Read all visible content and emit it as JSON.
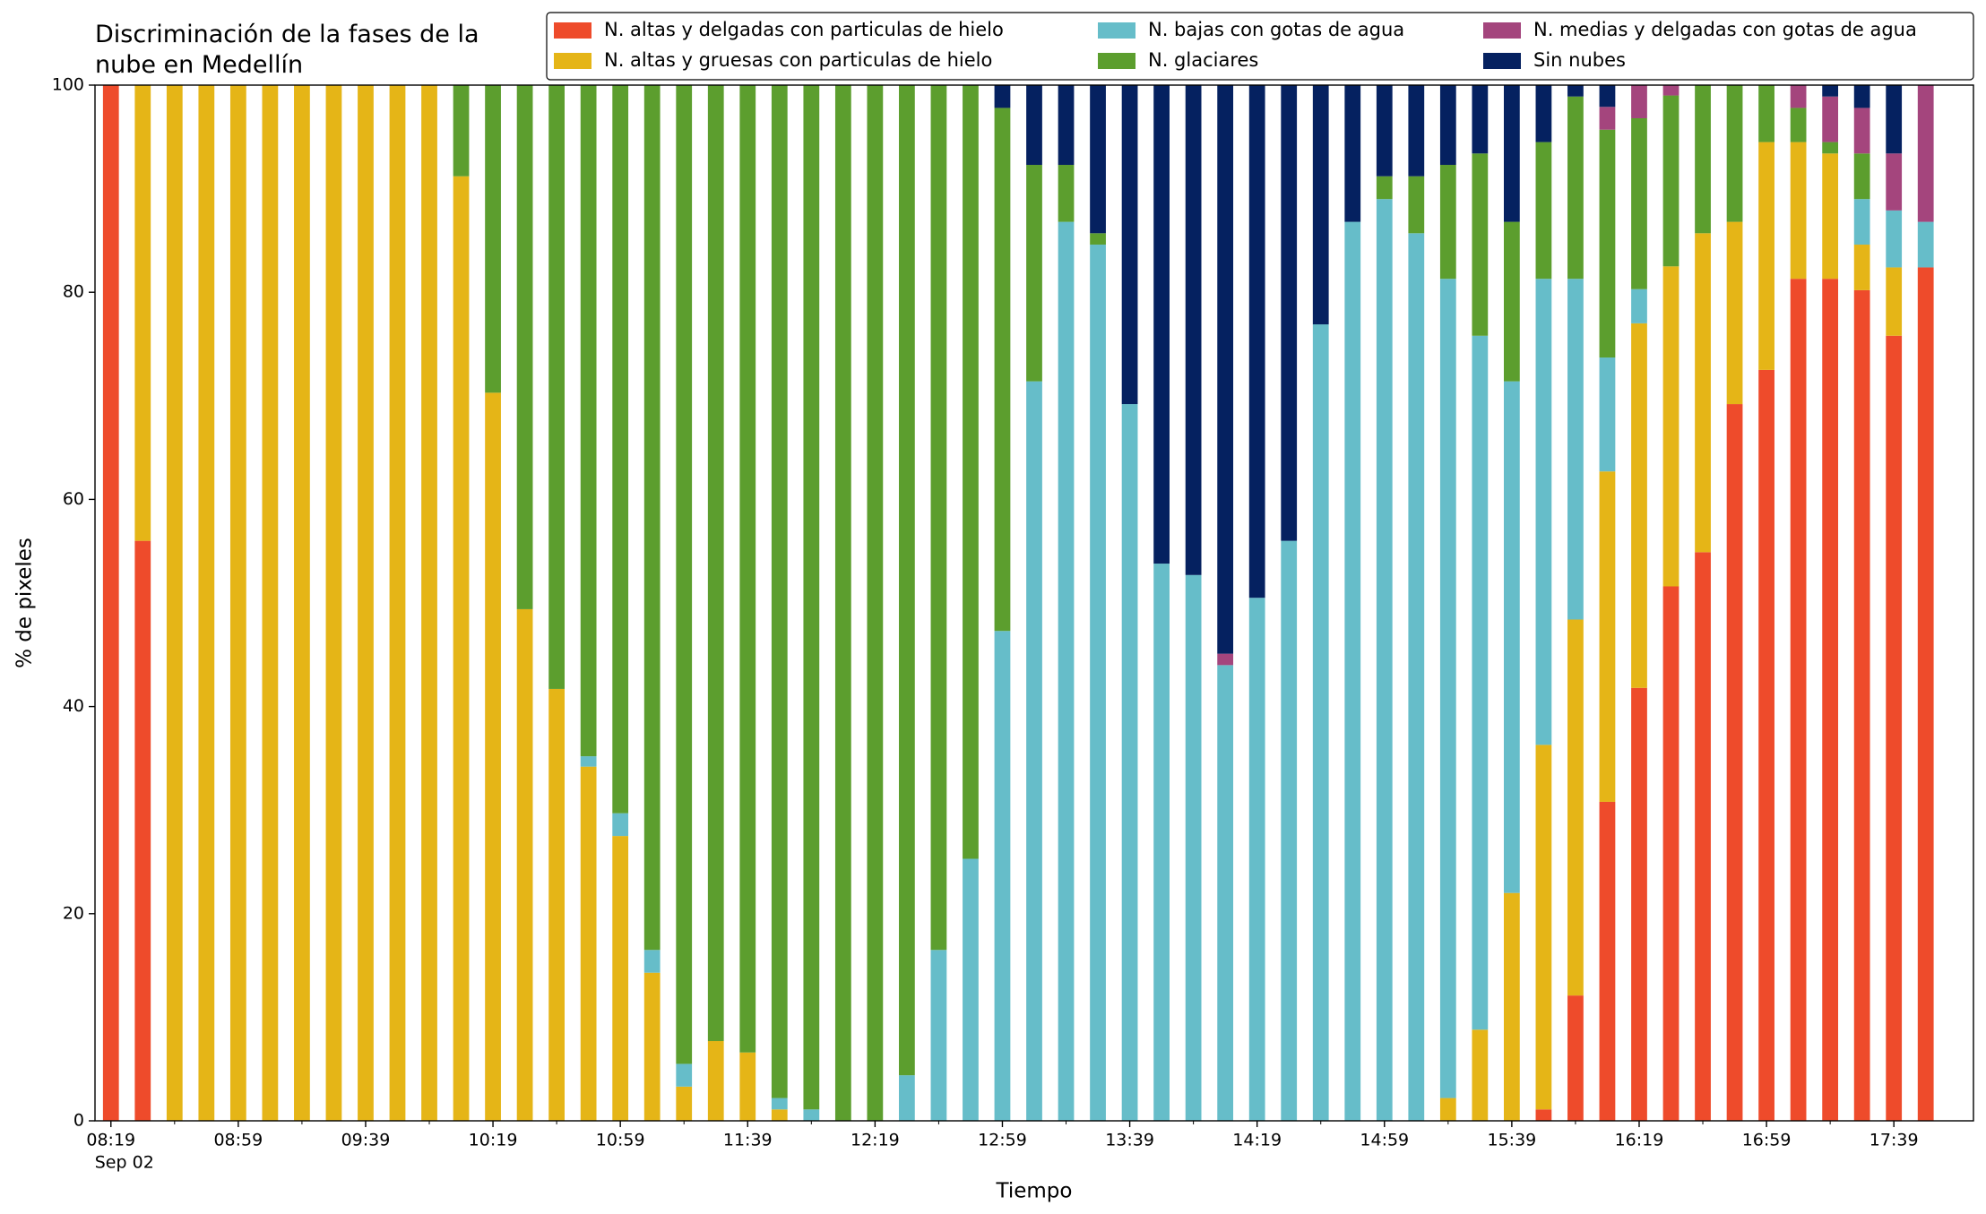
{
  "chart_data": {
    "type": "stacked_bar",
    "title": "Discriminación de la fases de la\nnube en Medellín",
    "xlabel": "Tiempo",
    "ylabel": "% de pixeles",
    "date_label": "Sep 02",
    "categories": [
      "08:19",
      null,
      null,
      null,
      "08:59",
      null,
      null,
      null,
      "09:39",
      null,
      null,
      null,
      "10:19",
      null,
      null,
      null,
      "10:59",
      null,
      null,
      null,
      "11:39",
      null,
      null,
      null,
      "12:19",
      null,
      null,
      null,
      "12:59",
      null,
      null,
      null,
      "13:39",
      null,
      null,
      null,
      "14:19",
      null,
      null,
      null,
      "14:59",
      null,
      null,
      null,
      "15:39",
      null,
      null,
      null,
      "16:19",
      null,
      null,
      null,
      "16:59",
      null,
      null,
      null,
      "17:39",
      null
    ],
    "ylim": [
      0,
      100
    ],
    "yticks": [
      0,
      20,
      40,
      60,
      80,
      100
    ],
    "grid": false,
    "legend": "top right",
    "series": [
      {
        "name": "N. altas y delgadas con particulas de hielo",
        "color": "#ee4b2b",
        "values": [
          100,
          56,
          0,
          0,
          0,
          0,
          0,
          0,
          0,
          0,
          0,
          0,
          0,
          0,
          0,
          0,
          0,
          0,
          0,
          0,
          0,
          0,
          0,
          0,
          0,
          0,
          0,
          0,
          0,
          0,
          0,
          0,
          0,
          0,
          0,
          0,
          0,
          0,
          0,
          0,
          0,
          0,
          0,
          0,
          0,
          1.1,
          12.1,
          30.8,
          41.8,
          51.6,
          54.9,
          69.2,
          72.5,
          81.3,
          81.3,
          80.2,
          75.8,
          82.4
        ]
      },
      {
        "name": "N. altas y gruesas con particulas de hielo",
        "color": "#e5b517",
        "values": [
          0,
          44,
          100,
          100,
          100,
          100,
          100,
          100,
          100,
          100,
          100,
          91.2,
          70.3,
          49.4,
          41.7,
          34.2,
          27.5,
          14.3,
          3.3,
          7.7,
          6.6,
          1.1,
          0,
          0,
          0,
          0,
          0,
          0,
          0,
          0,
          0,
          0,
          0,
          0,
          0,
          0,
          0,
          0,
          0,
          0,
          0,
          0,
          2.2,
          8.8,
          22,
          35.2,
          36.3,
          31.9,
          35.2,
          30.9,
          30.8,
          17.6,
          22,
          13.2,
          12.1,
          4.4,
          6.6,
          0
        ]
      },
      {
        "name": "N. bajas con gotas de agua",
        "color": "#66bdc9",
        "values": [
          0,
          0,
          0,
          0,
          0,
          0,
          0,
          0,
          0,
          0,
          0,
          0,
          0,
          0,
          0,
          1.0,
          2.2,
          2.2,
          2.2,
          0,
          0,
          1.1,
          1.1,
          0,
          0,
          4.4,
          16.5,
          25.3,
          47.3,
          71.4,
          86.8,
          84.6,
          69.2,
          53.8,
          52.7,
          44,
          50.5,
          56,
          76.9,
          86.8,
          89,
          85.7,
          79.1,
          67,
          49.4,
          45,
          32.9,
          11,
          3.3,
          0,
          0,
          0,
          0,
          0,
          0,
          4.4,
          5.5,
          4.4
        ]
      },
      {
        "name": "N. glaciares",
        "color": "#5c9e2e",
        "values": [
          0,
          0,
          0,
          0,
          0,
          0,
          0,
          0,
          0,
          0,
          0,
          8.8,
          29.7,
          50.6,
          58.3,
          64.8,
          70.3,
          83.5,
          94.5,
          92.3,
          93.4,
          97.8,
          98.9,
          100,
          100,
          95.6,
          83.5,
          74.7,
          50.5,
          20.9,
          5.5,
          1.1,
          0,
          0,
          0,
          0,
          0,
          0,
          0,
          0,
          2.2,
          5.5,
          11,
          17.6,
          15.4,
          13.2,
          17.6,
          22,
          16.5,
          16.5,
          14.3,
          13.2,
          5.5,
          3.3,
          1.1,
          4.4,
          0,
          0
        ]
      },
      {
        "name": "N. medias y delgadas con gotas de agua",
        "color": "#a4457d",
        "values": [
          0,
          0,
          0,
          0,
          0,
          0,
          0,
          0,
          0,
          0,
          0,
          0,
          0,
          0,
          0,
          0,
          0,
          0,
          0,
          0,
          0,
          0,
          0,
          0,
          0,
          0,
          0,
          0,
          0,
          0,
          0,
          0,
          0,
          0,
          0,
          1.1,
          0,
          0,
          0,
          0,
          0,
          0,
          0,
          0,
          0,
          0,
          0,
          2.2,
          3.2,
          1,
          0,
          0,
          0,
          2.2,
          4.4,
          4.4,
          5.5,
          13.2
        ]
      },
      {
        "name": "Sin nubes",
        "color": "#052160",
        "values": [
          0,
          0,
          0,
          0,
          0,
          0,
          0,
          0,
          0,
          0,
          0,
          0,
          0,
          0,
          0,
          0,
          0,
          0,
          0,
          0,
          0,
          0,
          0,
          0,
          0,
          0,
          0,
          0,
          2.2,
          7.7,
          7.7,
          14.3,
          30.8,
          46.2,
          47.3,
          54.9,
          49.5,
          44,
          23.1,
          13.2,
          8.8,
          8.8,
          7.7,
          6.6,
          13.2,
          5.5,
          1.1,
          2.1,
          0,
          0,
          0,
          0,
          0,
          0,
          1.1,
          2.2,
          6.6,
          0
        ]
      }
    ]
  }
}
